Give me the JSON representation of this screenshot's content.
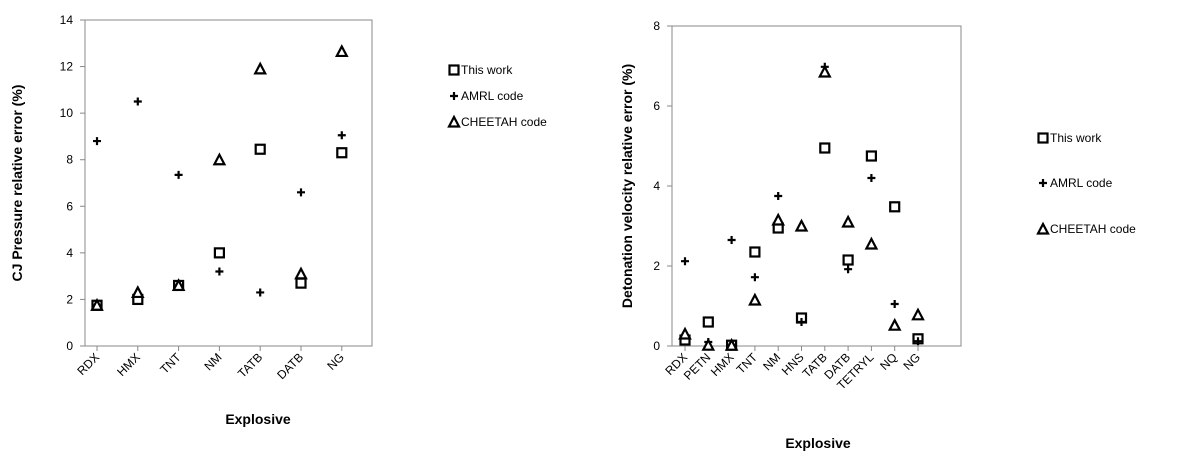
{
  "chart_data": [
    {
      "type": "scatter",
      "xlabel": "Explosive",
      "ylabel": "CJ Pressure relative error (%)",
      "ylim": [
        0,
        14
      ],
      "yticks": [
        0,
        2,
        4,
        6,
        8,
        10,
        12,
        14
      ],
      "grid": false,
      "legend_position": "right",
      "categories": [
        "RDX",
        "HMX",
        "TNT",
        "NM",
        "TATB",
        "DATB",
        "NG"
      ],
      "series": [
        {
          "name": "This work",
          "marker": "square",
          "values": [
            1.75,
            2.0,
            2.6,
            4.0,
            8.45,
            2.7,
            8.3
          ]
        },
        {
          "name": "AMRL code",
          "marker": "plus",
          "values": [
            8.8,
            10.5,
            7.35,
            3.2,
            2.3,
            6.6,
            9.05
          ]
        },
        {
          "name": "CHEETAH code",
          "marker": "triangle",
          "values": [
            1.75,
            2.3,
            2.6,
            8.0,
            11.9,
            3.1,
            12.65
          ]
        }
      ]
    },
    {
      "type": "scatter",
      "xlabel": "Explosive",
      "ylabel": "Detonation velocity relative error (%)",
      "ylim": [
        0,
        8
      ],
      "yticks": [
        0,
        2,
        4,
        6,
        8
      ],
      "grid": false,
      "legend_position": "right",
      "categories": [
        "RDX",
        "PETN",
        "HMX",
        "TNT",
        "NM",
        "HNS",
        "TATB",
        "DATB",
        "TETRYL",
        "NQ",
        "NG"
      ],
      "series": [
        {
          "name": "This work",
          "marker": "square",
          "values": [
            0.15,
            0.6,
            0.02,
            2.35,
            2.95,
            0.7,
            4.95,
            2.15,
            4.75,
            3.48,
            0.18
          ]
        },
        {
          "name": "AMRL code",
          "marker": "plus",
          "values": [
            2.12,
            0.1,
            2.65,
            1.72,
            3.75,
            0.6,
            6.98,
            1.92,
            4.2,
            1.05,
            0.12
          ]
        },
        {
          "name": "CHEETAH code",
          "marker": "triangle",
          "values": [
            0.3,
            0.02,
            0.02,
            1.15,
            3.15,
            3.0,
            6.85,
            3.1,
            2.55,
            0.52,
            0.78
          ]
        }
      ]
    }
  ]
}
